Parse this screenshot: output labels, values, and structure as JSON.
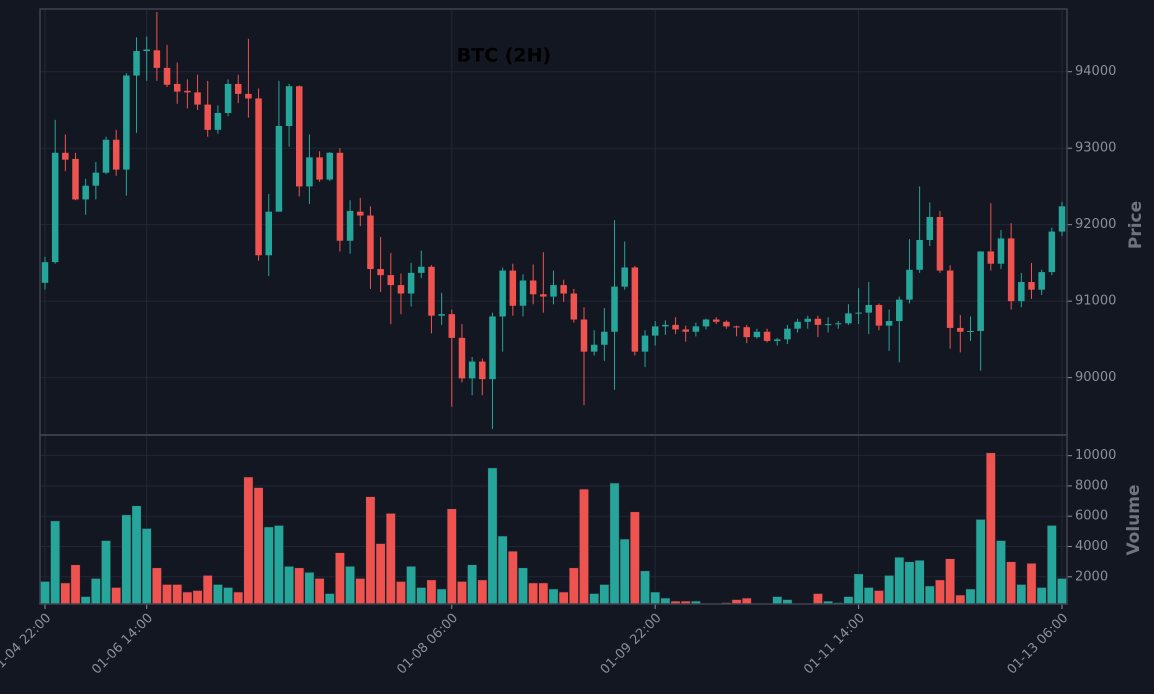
{
  "chart_data": {
    "type": "candlestick",
    "title": "BTC (2H)",
    "ylabel": "Price",
    "volume_label": "Volume",
    "up_color": "#26a69a",
    "down_color": "#ef5350",
    "grid": true,
    "categories": [
      "01-04 22:00",
      null,
      null,
      null,
      null,
      null,
      null,
      null,
      null,
      null,
      "01-06 14:00",
      null,
      null,
      null,
      null,
      null,
      null,
      null,
      null,
      null,
      null,
      null,
      null,
      null,
      null,
      null,
      null,
      null,
      null,
      null,
      null,
      null,
      null,
      null,
      null,
      null,
      null,
      null,
      null,
      null,
      "01-08 06:00",
      null,
      null,
      null,
      null,
      null,
      null,
      null,
      null,
      null,
      null,
      null,
      null,
      null,
      null,
      null,
      null,
      null,
      null,
      null,
      "01-09 22:00",
      null,
      null,
      null,
      null,
      null,
      null,
      null,
      null,
      null,
      null,
      null,
      null,
      null,
      null,
      null,
      null,
      null,
      null,
      null,
      "01-11 14:00",
      null,
      null,
      null,
      null,
      null,
      null,
      null,
      null,
      null,
      null,
      null,
      null,
      null,
      null,
      null,
      null,
      null,
      null,
      null,
      "01-13 06:00"
    ],
    "open": [
      91240,
      91510,
      92940,
      92860,
      92330,
      92510,
      92680,
      93110,
      92720,
      93950,
      94270,
      94280,
      94050,
      93840,
      93750,
      93730,
      93570,
      93240,
      93460,
      93840,
      93710,
      93650,
      91600,
      92170,
      93290,
      93810,
      92500,
      92880,
      92590,
      92940,
      91790,
      92170,
      92120,
      91420,
      91340,
      91210,
      91100,
      91370,
      91450,
      90810,
      90830,
      90520,
      89990,
      90210,
      89980,
      90800,
      91400,
      90940,
      91270,
      91090,
      91060,
      91210,
      91100,
      90760,
      90340,
      90430,
      90600,
      91190,
      91440,
      90340,
      90550,
      90670,
      90690,
      90630,
      90600,
      90670,
      90760,
      90730,
      90670,
      90660,
      90530,
      90600,
      90480,
      90500,
      90640,
      90730,
      90770,
      90690,
      90700,
      90710,
      90840,
      90850,
      90950,
      90680,
      90740,
      91020,
      91410,
      91800,
      92100,
      91400,
      90650,
      90600,
      90610,
      91650,
      91490,
      91820,
      91000,
      91250,
      91150,
      91380,
      91910
    ],
    "high": [
      91580,
      93370,
      93180,
      92940,
      92600,
      92820,
      93150,
      93240,
      93980,
      94450,
      94460,
      94780,
      94350,
      94120,
      93900,
      93960,
      93880,
      93560,
      93900,
      93960,
      94430,
      93780,
      92400,
      93880,
      93840,
      93820,
      93180,
      92960,
      92950,
      93000,
      92320,
      92350,
      92240,
      91840,
      91630,
      91360,
      91500,
      91660,
      91470,
      91110,
      90890,
      90700,
      90270,
      90250,
      90850,
      91440,
      91490,
      91350,
      91480,
      91640,
      91400,
      91280,
      91160,
      90920,
      90620,
      90910,
      92060,
      91780,
      91460,
      90620,
      90740,
      90750,
      90790,
      90680,
      90720,
      90770,
      90790,
      90750,
      90680,
      90690,
      90640,
      90640,
      90520,
      90690,
      90770,
      90810,
      90810,
      90790,
      90740,
      90960,
      91170,
      91250,
      90970,
      90890,
      91060,
      91810,
      92500,
      92290,
      92180,
      91470,
      90820,
      90800,
      91650,
      92280,
      91930,
      92020,
      91370,
      91500,
      91410,
      91960,
      92300
    ],
    "low": [
      91150,
      91490,
      92700,
      92320,
      92130,
      92330,
      92660,
      92640,
      92380,
      93200,
      93880,
      93880,
      93800,
      93580,
      93520,
      93500,
      93150,
      93190,
      93420,
      93590,
      93400,
      91530,
      91330,
      92170,
      93020,
      92370,
      92270,
      92560,
      92570,
      91650,
      91620,
      91980,
      91160,
      91120,
      90700,
      90830,
      90930,
      91300,
      90580,
      90690,
      89620,
      89940,
      89770,
      89770,
      89330,
      90340,
      90810,
      90800,
      90960,
      90850,
      90960,
      90990,
      90720,
      89640,
      90290,
      90220,
      89840,
      91150,
      90290,
      90140,
      90420,
      90560,
      90570,
      90470,
      90540,
      90630,
      90700,
      90640,
      90540,
      90450,
      90510,
      90460,
      90420,
      90440,
      90590,
      90640,
      90530,
      90590,
      90640,
      90690,
      90700,
      90570,
      90620,
      90350,
      90200,
      90970,
      91370,
      91720,
      91370,
      90380,
      90330,
      90480,
      90090,
      91400,
      91420,
      90890,
      90920,
      91030,
      91080,
      91340,
      91850
    ],
    "close": [
      91510,
      92940,
      92850,
      92330,
      92510,
      92680,
      93110,
      92720,
      93950,
      94270,
      94290,
      94050,
      93830,
      93740,
      93730,
      93570,
      93240,
      93460,
      93840,
      93710,
      93650,
      91600,
      92170,
      93290,
      93810,
      92500,
      92880,
      92590,
      92940,
      91790,
      92180,
      92120,
      91420,
      91340,
      91210,
      91100,
      91370,
      91450,
      90810,
      90830,
      90520,
      89990,
      90210,
      89980,
      90800,
      91400,
      90940,
      91270,
      91090,
      91060,
      91210,
      91100,
      90760,
      90340,
      90430,
      90600,
      91190,
      91440,
      90340,
      90550,
      90670,
      90690,
      90630,
      90600,
      90670,
      90760,
      90730,
      90670,
      90660,
      90530,
      90600,
      90480,
      90500,
      90640,
      90730,
      90770,
      90690,
      90700,
      90710,
      90840,
      90850,
      90950,
      90680,
      90740,
      91020,
      91410,
      91800,
      92100,
      91400,
      90650,
      90600,
      90610,
      91650,
      91490,
      91820,
      91000,
      91250,
      91150,
      91380,
      91910,
      92240
    ],
    "volume": [
      1700,
      5700,
      1600,
      2800,
      700,
      1900,
      4400,
      1300,
      6100,
      6700,
      5200,
      2600,
      1500,
      1500,
      1000,
      1100,
      2100,
      1500,
      1300,
      1000,
      8600,
      7900,
      5300,
      5400,
      2700,
      2600,
      2300,
      1900,
      900,
      3600,
      2700,
      1900,
      7300,
      4200,
      6200,
      1700,
      2700,
      1300,
      1800,
      1200,
      6500,
      1700,
      2800,
      1800,
      9200,
      4700,
      3700,
      2600,
      1600,
      1600,
      1200,
      1000,
      2600,
      7800,
      900,
      1500,
      8200,
      4500,
      6300,
      2400,
      1000,
      600,
      400,
      400,
      400,
      100,
      200,
      300,
      500,
      600,
      200,
      200,
      700,
      500,
      100,
      100,
      900,
      400,
      300,
      700,
      2200,
      1300,
      1100,
      2100,
      3300,
      3000,
      3100,
      1400,
      1800,
      3200,
      800,
      1200,
      5800,
      10200,
      4400,
      3000,
      1500,
      2900,
      1300,
      5400,
      1900
    ],
    "ylim": [
      89250,
      94820
    ],
    "yticks": [
      90000,
      91000,
      92000,
      93000,
      94000
    ],
    "volume_ylim": [
      200,
      11300
    ],
    "volume_yticks": [
      2000,
      4000,
      6000,
      8000,
      10000
    ]
  }
}
